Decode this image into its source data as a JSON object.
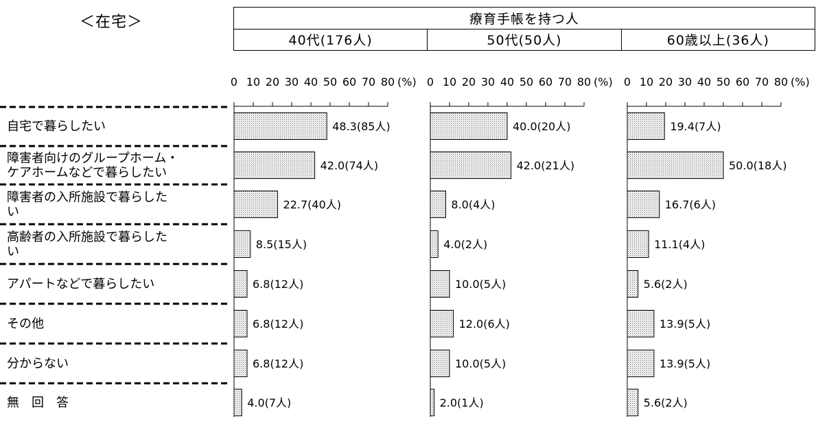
{
  "caption": "＜在宅＞",
  "header": {
    "group_title": "療育手帳を持つ人",
    "columns": [
      "40代(176人)",
      "50代(50人)",
      "60歳以上(36人)"
    ]
  },
  "chart_data": {
    "type": "bar",
    "orientation": "horizontal",
    "categories": [
      "自宅で暮らしたい",
      "障害者向けのグループホーム・ケアホームなどで暮らしたい",
      "障害者の入所施設で暮らしたい",
      "高齢者の入所施設で暮らしたい",
      "アパートなどで暮らしたい",
      "その他",
      "分からない",
      "無　回　答"
    ],
    "xticks": [
      "0",
      "10",
      "20",
      "30",
      "40",
      "50",
      "60",
      "70",
      "80"
    ],
    "xunit": "(%)",
    "xlim": [
      0,
      80
    ],
    "bar_pattern": "dotted",
    "panels": [
      {
        "name": "40代(176人)",
        "values": [
          48.3,
          42.0,
          22.7,
          8.5,
          6.8,
          6.8,
          6.8,
          4.0
        ],
        "labels": [
          "48.3(85人)",
          "42.0(74人)",
          "22.7(40人)",
          "8.5(15人)",
          "6.8(12人)",
          "6.8(12人)",
          "6.8(12人)",
          "4.0(7人)"
        ]
      },
      {
        "name": "50代(50人)",
        "values": [
          40.0,
          42.0,
          8.0,
          4.0,
          10.0,
          12.0,
          10.0,
          2.0
        ],
        "labels": [
          "40.0(20人)",
          "42.0(21人)",
          "8.0(4人)",
          "4.0(2人)",
          "10.0(5人)",
          "12.0(6人)",
          "10.0(5人)",
          "2.0(1人)"
        ]
      },
      {
        "name": "60歳以上(36人)",
        "values": [
          19.4,
          50.0,
          16.7,
          11.1,
          5.6,
          13.9,
          13.9,
          5.6
        ],
        "labels": [
          "19.4(7人)",
          "50.0(18人)",
          "16.7(6人)",
          "11.1(4人)",
          "5.6(2人)",
          "13.9(5人)",
          "13.9(5人)",
          "5.6(2人)"
        ]
      }
    ]
  }
}
